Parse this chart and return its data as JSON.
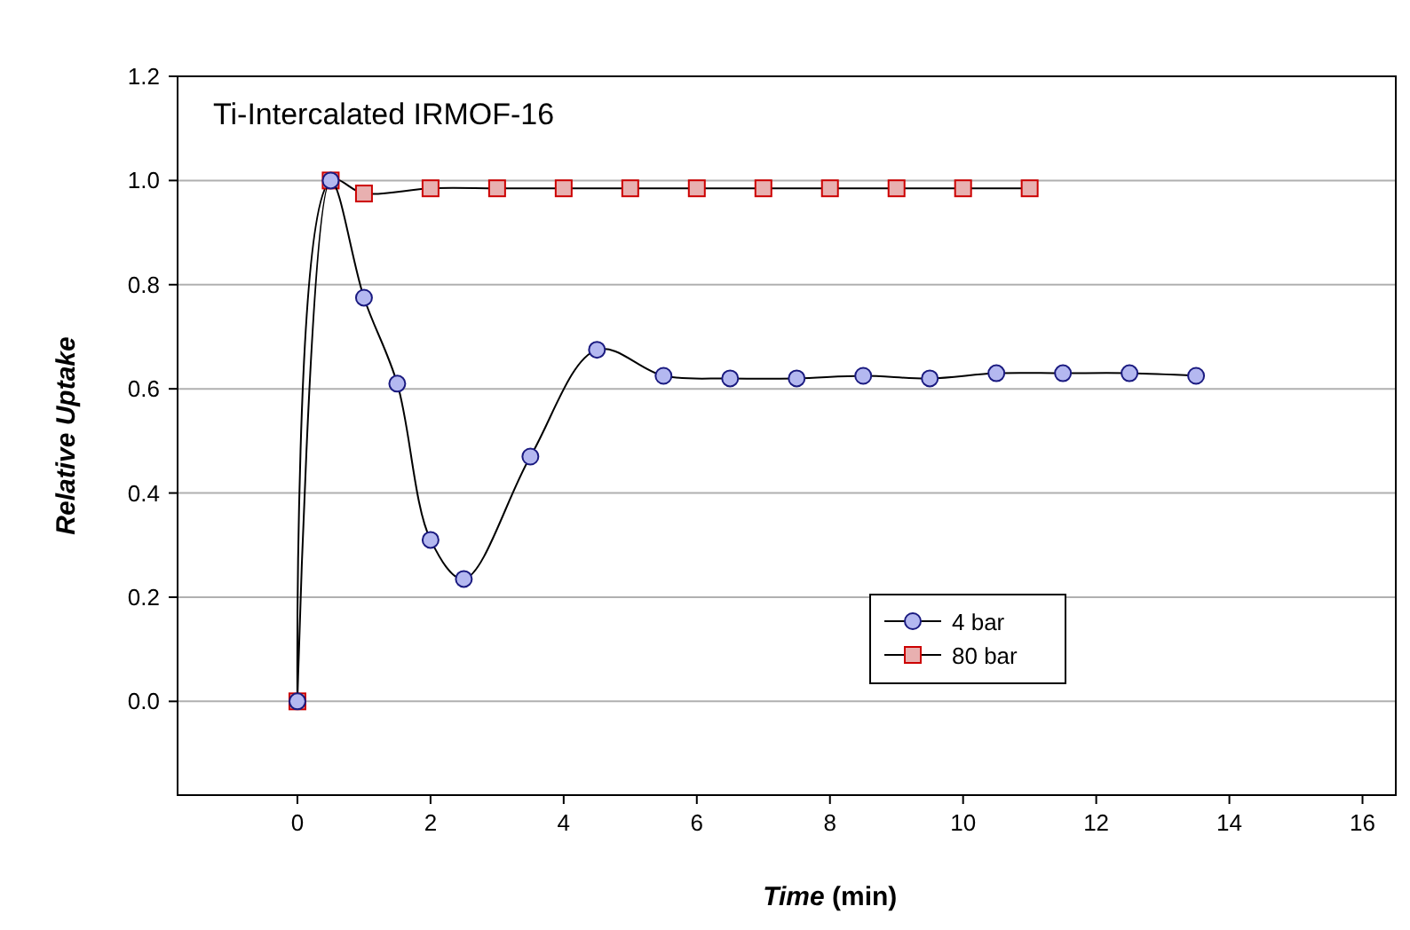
{
  "chart_data": {
    "type": "line",
    "title": "Ti-Intercalated IRMOF-16",
    "xlabel": "Time (min)",
    "ylabel": "Relative Uptake",
    "xlim": [
      -1.8,
      16.5
    ],
    "xticks": [
      0,
      2,
      4,
      6,
      8,
      10,
      12,
      14,
      16
    ],
    "ylim": [
      -0.18,
      1.2
    ],
    "yticks": [
      {
        "value": 0,
        "label": "0.0"
      },
      0.2,
      0.4,
      0.6,
      0.8,
      {
        "value": 1,
        "label": "1.0"
      },
      1.2
    ],
    "grid": "y",
    "legend": "right",
    "line_style": "solid",
    "series": [
      {
        "name": "4 bar",
        "color": "#b4b8f0",
        "marker": "circle",
        "x": [
          0,
          0.5,
          1,
          1.5,
          2,
          2.5,
          3.5,
          4.5,
          5.5,
          6.5,
          7.5,
          8.5,
          9.5,
          10.5,
          11.5,
          12.5,
          13.5
        ],
        "values": [
          0,
          1.0,
          0.775,
          0.61,
          0.31,
          0.235,
          0.47,
          0.675,
          0.625,
          0.62,
          0.62,
          0.625,
          0.62,
          0.63,
          0.63,
          0.63,
          0.625
        ]
      },
      {
        "name": "80 bar",
        "color": "#e8b0b0",
        "marker": "square",
        "x": [
          0,
          0.5,
          1,
          2,
          3,
          4,
          5,
          6,
          7,
          8,
          9,
          10,
          11
        ],
        "values": [
          0,
          1.0,
          0.975,
          0.985,
          0.985,
          0.985,
          0.985,
          0.985,
          0.985,
          0.985,
          0.985,
          0.985,
          0.985
        ]
      }
    ]
  }
}
